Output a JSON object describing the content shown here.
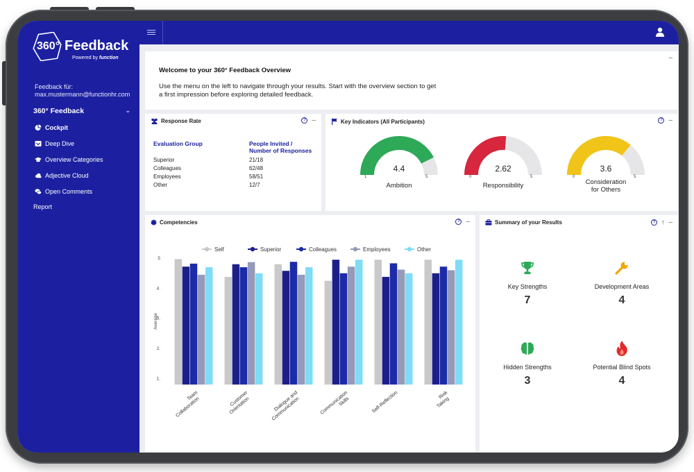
{
  "brand": {
    "badge": "360°",
    "title": "Feedback",
    "powered_prefix": "Powered by",
    "powered_name": "function"
  },
  "feedback_for": {
    "label": "Feedback für:",
    "email": "max.mustermann@functionhr.com"
  },
  "nav": {
    "section": "360° Feedback",
    "items": [
      {
        "label": "Cockpit",
        "icon": "pie-chart-icon",
        "active": true
      },
      {
        "label": "Deep Dive",
        "icon": "inbox-icon",
        "active": false
      },
      {
        "label": "Overview Categories",
        "icon": "graduation-cap-icon",
        "active": false
      },
      {
        "label": "Adjective Cloud",
        "icon": "cloud-icon",
        "active": false
      },
      {
        "label": "Open Comments",
        "icon": "comments-icon",
        "active": false
      }
    ],
    "report": "Report"
  },
  "welcome": {
    "title": "Welcome to your 360° Feedback Overview",
    "text": "Use the menu on the left to navigate through your results. Start with the overview section to get a first impression before exploring detailed feedback."
  },
  "response_rate": {
    "title": "Response Rate",
    "col1": "Evaluation Group",
    "col2_line1": "People Invited /",
    "col2_line2": "Number of Responses",
    "rows": [
      {
        "group": "Superior",
        "value": "21/18"
      },
      {
        "group": "Colleagues",
        "value": "62/48"
      },
      {
        "group": "Employees",
        "value": "58/51"
      },
      {
        "group": "Other",
        "value": "12/7"
      }
    ]
  },
  "key_indicators": {
    "title": "Key Indicators (All Participants)",
    "gauges": [
      {
        "label": "Ambition",
        "value": 4.4,
        "value_text": "4.4",
        "min": "1",
        "max": "5",
        "min_num": 1,
        "max_num": 5,
        "color": "#2ea957"
      },
      {
        "label": "Responsibility",
        "value": 2.62,
        "value_text": "2.62",
        "min": "0",
        "max": "5",
        "min_num": 0,
        "max_num": 5,
        "color": "#d7263d"
      },
      {
        "label": "Consideration for Others",
        "label_line1": "Consideration",
        "label_line2": "for Others",
        "value": 3.6,
        "value_text": "3.6",
        "min": "0",
        "max": "5",
        "min_num": 0,
        "max_num": 5,
        "color": "#f0c419"
      }
    ]
  },
  "competencies": {
    "title": "Competencies",
    "chart_data": {
      "type": "bar",
      "ylabel": "Average",
      "ylim": [
        0.8,
        5
      ],
      "yticks": [
        1,
        2,
        3,
        4,
        5
      ],
      "ytick_labels": [
        "1.",
        "2.",
        "3.",
        "4.",
        "5"
      ],
      "categories": [
        "Team Collaboration",
        "Customer Orientation",
        "Dialogue and Communication",
        "Communication Skills",
        "Self-Reflection",
        "Risk Taking"
      ],
      "legend_position": "top",
      "series": [
        {
          "name": "Self",
          "color": "#c9c9c9",
          "values": [
            4.97,
            4.38,
            4.8,
            4.25,
            4.95,
            4.95
          ]
        },
        {
          "name": "Superior",
          "color": "#1c1f8a",
          "values": [
            4.72,
            4.8,
            4.58,
            4.95,
            4.38,
            4.5
          ]
        },
        {
          "name": "Colleagues",
          "color": "#1c2ba8",
          "values": [
            4.82,
            4.7,
            4.88,
            4.5,
            4.83,
            4.72
          ]
        },
        {
          "name": "Employees",
          "color": "#949ab8",
          "values": [
            4.45,
            4.87,
            4.45,
            4.72,
            4.62,
            4.6
          ]
        },
        {
          "name": "Other",
          "color": "#7fdcf7",
          "values": [
            4.7,
            4.5,
            4.7,
            4.95,
            4.5,
            4.95
          ]
        }
      ]
    }
  },
  "summary": {
    "title": "Summary of your Results",
    "items": [
      {
        "label": "Key Strengths",
        "value": "7",
        "icon": "trophy-icon",
        "color": "#2ea957"
      },
      {
        "label": "Development Areas",
        "value": "4",
        "icon": "wrench-icon",
        "color": "#f0a500"
      },
      {
        "label": "Hidden Strengths",
        "value": "3",
        "icon": "brain-icon",
        "color": "#2ea957"
      },
      {
        "label": "Potential Blind Spots",
        "value": "4",
        "icon": "fire-icon",
        "color": "#e02b2b"
      }
    ]
  },
  "icons": {
    "help": "?",
    "minus": "–",
    "expand": "↑",
    "chevron": "⌄"
  }
}
